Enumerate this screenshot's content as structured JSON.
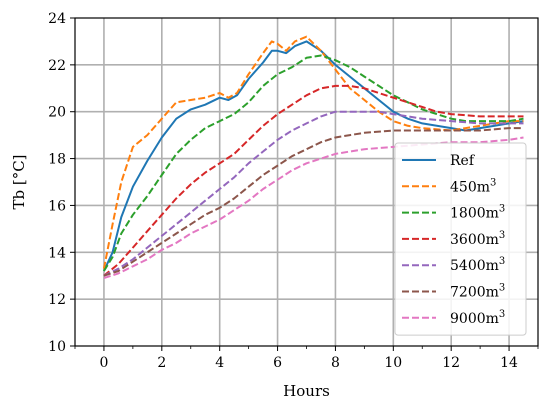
{
  "chart_data": {
    "type": "line",
    "xlabel": "Hours",
    "ylabel": "Tb [°C]",
    "xlim": [
      -1,
      15
    ],
    "ylim": [
      10,
      24
    ],
    "xticks": [
      0,
      2,
      4,
      6,
      8,
      10,
      12,
      14
    ],
    "yticks": [
      10,
      12,
      14,
      16,
      18,
      20,
      22,
      24
    ],
    "grid": true,
    "legend_position": "lower-right",
    "series": [
      {
        "name": "Ref",
        "color": "#1f77b4",
        "dash": "solid",
        "points": [
          [
            0,
            13.2
          ],
          [
            0.3,
            14.0
          ],
          [
            0.6,
            15.5
          ],
          [
            1.0,
            16.8
          ],
          [
            1.5,
            17.9
          ],
          [
            2.0,
            18.9
          ],
          [
            2.5,
            19.7
          ],
          [
            3.0,
            20.1
          ],
          [
            3.5,
            20.3
          ],
          [
            4.0,
            20.6
          ],
          [
            4.3,
            20.5
          ],
          [
            4.6,
            20.7
          ],
          [
            5.0,
            21.4
          ],
          [
            5.5,
            22.1
          ],
          [
            5.8,
            22.6
          ],
          [
            6.0,
            22.6
          ],
          [
            6.3,
            22.5
          ],
          [
            6.6,
            22.8
          ],
          [
            7.0,
            23.0
          ],
          [
            7.5,
            22.6
          ],
          [
            8.0,
            22.0
          ],
          [
            8.5,
            21.5
          ],
          [
            9.0,
            21.0
          ],
          [
            9.5,
            20.5
          ],
          [
            10.0,
            20.0
          ],
          [
            10.5,
            19.7
          ],
          [
            11.0,
            19.5
          ],
          [
            12.0,
            19.3
          ],
          [
            12.5,
            19.2
          ],
          [
            13.0,
            19.3
          ],
          [
            13.5,
            19.4
          ],
          [
            14.0,
            19.5
          ],
          [
            14.5,
            19.6
          ]
        ]
      },
      {
        "name": "450m3",
        "label_base": "450m",
        "label_sup": "3",
        "color": "#ff7f0e",
        "dash": "dashed",
        "points": [
          [
            0,
            13.3
          ],
          [
            0.3,
            15.2
          ],
          [
            0.6,
            17.0
          ],
          [
            1.0,
            18.5
          ],
          [
            1.5,
            19.0
          ],
          [
            2.0,
            19.7
          ],
          [
            2.5,
            20.4
          ],
          [
            3.0,
            20.5
          ],
          [
            3.5,
            20.6
          ],
          [
            4.0,
            20.8
          ],
          [
            4.3,
            20.6
          ],
          [
            4.6,
            20.8
          ],
          [
            5.0,
            21.6
          ],
          [
            5.5,
            22.5
          ],
          [
            5.8,
            23.0
          ],
          [
            6.0,
            22.9
          ],
          [
            6.3,
            22.6
          ],
          [
            6.6,
            23.0
          ],
          [
            7.0,
            23.2
          ],
          [
            7.5,
            22.6
          ],
          [
            8.0,
            21.8
          ],
          [
            8.5,
            21.0
          ],
          [
            9.0,
            20.5
          ],
          [
            9.5,
            20.0
          ],
          [
            10.0,
            19.6
          ],
          [
            10.5,
            19.4
          ],
          [
            11.0,
            19.3
          ],
          [
            12.0,
            19.2
          ],
          [
            12.5,
            19.3
          ],
          [
            13.0,
            19.4
          ],
          [
            13.5,
            19.5
          ],
          [
            14.0,
            19.6
          ],
          [
            14.5,
            19.6
          ]
        ]
      },
      {
        "name": "1800m3",
        "label_base": "1800m",
        "label_sup": "3",
        "color": "#2ca02c",
        "dash": "dashed",
        "points": [
          [
            0,
            13.2
          ],
          [
            0.3,
            13.8
          ],
          [
            0.6,
            14.8
          ],
          [
            1.0,
            15.6
          ],
          [
            1.5,
            16.4
          ],
          [
            2.0,
            17.3
          ],
          [
            2.5,
            18.2
          ],
          [
            3.0,
            18.8
          ],
          [
            3.5,
            19.3
          ],
          [
            4.0,
            19.6
          ],
          [
            4.5,
            19.9
          ],
          [
            5.0,
            20.4
          ],
          [
            5.5,
            21.1
          ],
          [
            6.0,
            21.6
          ],
          [
            6.5,
            21.9
          ],
          [
            7.0,
            22.3
          ],
          [
            7.5,
            22.4
          ],
          [
            8.0,
            22.2
          ],
          [
            8.5,
            21.9
          ],
          [
            9.0,
            21.5
          ],
          [
            9.5,
            21.1
          ],
          [
            10.0,
            20.7
          ],
          [
            10.5,
            20.4
          ],
          [
            11.0,
            20.1
          ],
          [
            11.5,
            19.9
          ],
          [
            12.0,
            19.7
          ],
          [
            12.5,
            19.6
          ],
          [
            13.0,
            19.6
          ],
          [
            14.0,
            19.6
          ],
          [
            14.5,
            19.7
          ]
        ]
      },
      {
        "name": "3600m3",
        "label_base": "3600m",
        "label_sup": "3",
        "color": "#d62728",
        "dash": "dashed",
        "points": [
          [
            0,
            13.0
          ],
          [
            0.5,
            13.5
          ],
          [
            1.0,
            14.2
          ],
          [
            1.5,
            14.9
          ],
          [
            2.0,
            15.6
          ],
          [
            2.5,
            16.3
          ],
          [
            3.0,
            16.9
          ],
          [
            3.5,
            17.4
          ],
          [
            4.0,
            17.8
          ],
          [
            4.5,
            18.2
          ],
          [
            5.0,
            18.8
          ],
          [
            5.5,
            19.4
          ],
          [
            6.0,
            19.9
          ],
          [
            6.5,
            20.3
          ],
          [
            7.0,
            20.7
          ],
          [
            7.5,
            21.0
          ],
          [
            8.0,
            21.1
          ],
          [
            8.5,
            21.1
          ],
          [
            9.0,
            21.0
          ],
          [
            9.5,
            20.8
          ],
          [
            10.0,
            20.6
          ],
          [
            10.5,
            20.4
          ],
          [
            11.0,
            20.2
          ],
          [
            11.5,
            20.0
          ],
          [
            12.0,
            19.9
          ],
          [
            13.0,
            19.8
          ],
          [
            14.0,
            19.8
          ],
          [
            14.5,
            19.8
          ]
        ]
      },
      {
        "name": "5400m3",
        "label_base": "5400m",
        "label_sup": "3",
        "color": "#9467bd",
        "dash": "dashed",
        "points": [
          [
            0,
            13.0
          ],
          [
            0.5,
            13.3
          ],
          [
            1.0,
            13.7
          ],
          [
            1.5,
            14.2
          ],
          [
            2.0,
            14.7
          ],
          [
            2.5,
            15.2
          ],
          [
            3.0,
            15.7
          ],
          [
            3.5,
            16.2
          ],
          [
            4.0,
            16.7
          ],
          [
            4.5,
            17.2
          ],
          [
            5.0,
            17.8
          ],
          [
            5.5,
            18.3
          ],
          [
            6.0,
            18.8
          ],
          [
            6.5,
            19.2
          ],
          [
            7.0,
            19.5
          ],
          [
            7.5,
            19.8
          ],
          [
            8.0,
            20.0
          ],
          [
            8.5,
            20.0
          ],
          [
            9.0,
            20.0
          ],
          [
            9.5,
            20.0
          ],
          [
            10.0,
            19.9
          ],
          [
            10.5,
            19.8
          ],
          [
            11.0,
            19.7
          ],
          [
            12.0,
            19.6
          ],
          [
            13.0,
            19.5
          ],
          [
            14.0,
            19.5
          ],
          [
            14.5,
            19.5
          ]
        ]
      },
      {
        "name": "7200m3",
        "label_base": "7200m",
        "label_sup": "3",
        "color": "#8c564b",
        "dash": "dashed",
        "points": [
          [
            0,
            13.0
          ],
          [
            0.5,
            13.2
          ],
          [
            1.0,
            13.6
          ],
          [
            1.5,
            14.0
          ],
          [
            2.0,
            14.4
          ],
          [
            2.5,
            14.8
          ],
          [
            3.0,
            15.2
          ],
          [
            3.5,
            15.6
          ],
          [
            4.0,
            15.9
          ],
          [
            4.5,
            16.3
          ],
          [
            5.0,
            16.8
          ],
          [
            5.5,
            17.3
          ],
          [
            6.0,
            17.7
          ],
          [
            6.5,
            18.1
          ],
          [
            7.0,
            18.4
          ],
          [
            7.5,
            18.7
          ],
          [
            8.0,
            18.9
          ],
          [
            8.5,
            19.0
          ],
          [
            9.0,
            19.1
          ],
          [
            10.0,
            19.2
          ],
          [
            11.0,
            19.2
          ],
          [
            12.0,
            19.2
          ],
          [
            13.0,
            19.2
          ],
          [
            14.0,
            19.3
          ],
          [
            14.5,
            19.3
          ]
        ]
      },
      {
        "name": "9000m3",
        "label_base": "9000m",
        "label_sup": "3",
        "color": "#e377c2",
        "dash": "dashed",
        "points": [
          [
            0,
            12.9
          ],
          [
            0.5,
            13.1
          ],
          [
            1.0,
            13.4
          ],
          [
            1.5,
            13.7
          ],
          [
            2.0,
            14.1
          ],
          [
            2.5,
            14.4
          ],
          [
            3.0,
            14.8
          ],
          [
            3.5,
            15.1
          ],
          [
            4.0,
            15.4
          ],
          [
            4.5,
            15.8
          ],
          [
            5.0,
            16.2
          ],
          [
            5.5,
            16.7
          ],
          [
            6.0,
            17.1
          ],
          [
            6.5,
            17.5
          ],
          [
            7.0,
            17.8
          ],
          [
            7.5,
            18.0
          ],
          [
            8.0,
            18.2
          ],
          [
            8.5,
            18.3
          ],
          [
            9.0,
            18.4
          ],
          [
            10.0,
            18.5
          ],
          [
            11.0,
            18.6
          ],
          [
            12.0,
            18.7
          ],
          [
            13.0,
            18.7
          ],
          [
            14.0,
            18.8
          ],
          [
            14.5,
            18.9
          ]
        ]
      }
    ]
  }
}
